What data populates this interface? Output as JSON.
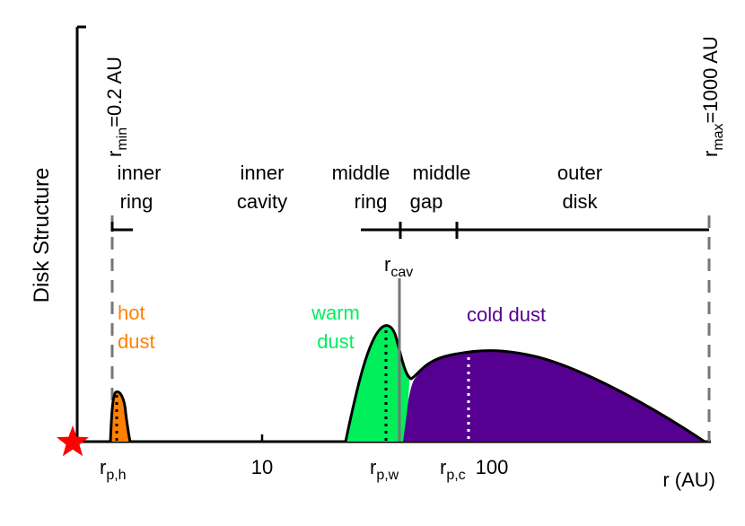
{
  "y_axis_label": "Disk Structure",
  "x_axis_label": "r (AU)",
  "tick_labels": [
    "10",
    "100"
  ],
  "boundaries": {
    "rmin": {
      "symbol": "r",
      "sub": "min",
      "text": "=0.2 AU"
    },
    "rmax": {
      "symbol": "r",
      "sub": "max",
      "text": "=1000 AU"
    }
  },
  "regions": {
    "inner_ring": [
      "inner",
      "ring"
    ],
    "inner_cavity": [
      "inner",
      "cavity"
    ],
    "middle_ring": [
      "middle",
      "ring"
    ],
    "middle_gap": [
      "middle",
      "gap"
    ],
    "outer_disk": [
      "outer",
      "disk"
    ]
  },
  "radii_labels": {
    "rcav": {
      "symbol": "r",
      "sub": "cav"
    },
    "rph": {
      "symbol": "r",
      "sub": "p,h"
    },
    "rpw": {
      "symbol": "r",
      "sub": "p,w"
    },
    "rpc": {
      "symbol": "r",
      "sub": "p,c"
    }
  },
  "dust_labels": {
    "hot": [
      "hot",
      "dust"
    ],
    "warm": [
      "warm",
      "dust"
    ],
    "cold": "cold dust"
  },
  "colors": {
    "hot": "#ff8000",
    "warm": "#00ee5a",
    "cold": "#550090",
    "star": "#ff0000",
    "dashed": "#777777",
    "rcav_line": "#777777",
    "axes": "#000000"
  },
  "icons": {
    "star": "red-star-icon"
  }
}
